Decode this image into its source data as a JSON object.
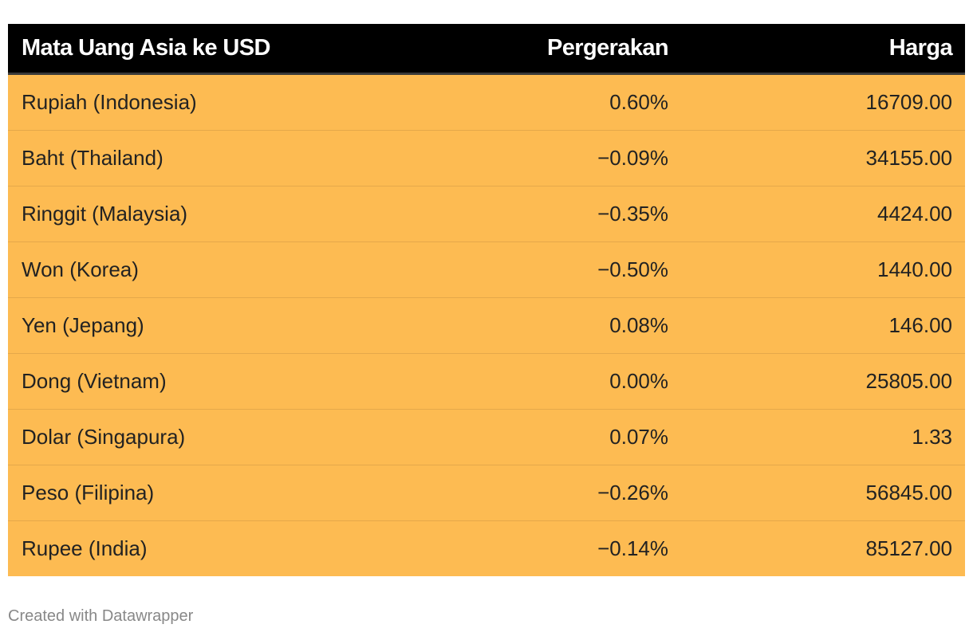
{
  "chart_data": {
    "type": "table",
    "columns": [
      "Mata Uang Asia ke USD",
      "Pergerakan",
      "Harga"
    ],
    "rows": [
      {
        "currency": "Rupiah (Indonesia)",
        "change": "0.60%",
        "price": "16709.00"
      },
      {
        "currency": "Baht (Thailand)",
        "change": "−0.09%",
        "price": "34155.00"
      },
      {
        "currency": "Ringgit (Malaysia)",
        "change": "−0.35%",
        "price": "4424.00"
      },
      {
        "currency": "Won (Korea)",
        "change": "−0.50%",
        "price": "1440.00"
      },
      {
        "currency": "Yen (Jepang)",
        "change": "0.08%",
        "price": "146.00"
      },
      {
        "currency": "Dong (Vietnam)",
        "change": "0.00%",
        "price": "25805.00"
      },
      {
        "currency": "Dolar (Singapura)",
        "change": "0.07%",
        "price": "1.33"
      },
      {
        "currency": "Peso (Filipina)",
        "change": "−0.26%",
        "price": "56845.00"
      },
      {
        "currency": "Rupee (India)",
        "change": "−0.14%",
        "price": "85127.00"
      }
    ]
  },
  "colors": {
    "header_bg": "#000000",
    "row_bg": "#fdbb52",
    "row_divider": "#e5a84a"
  },
  "footer": {
    "credit": "Created with Datawrapper"
  }
}
